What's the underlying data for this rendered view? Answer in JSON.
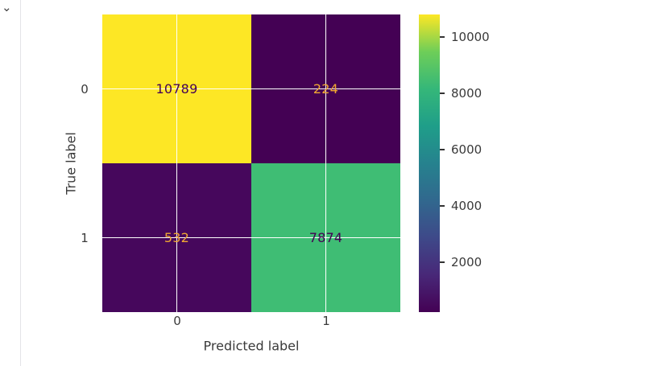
{
  "page": {
    "background": "#ffffff",
    "icons": {
      "chevron_down": "⌄"
    }
  },
  "chart_data": {
    "type": "heatmap",
    "subtype": "confusion_matrix",
    "title": "",
    "xlabel": "Predicted label",
    "ylabel": "True label",
    "x_ticklabels": [
      "0",
      "1"
    ],
    "y_ticklabels": [
      "0",
      "1"
    ],
    "matrix": [
      [
        10789,
        224
      ],
      [
        532,
        7874
      ]
    ],
    "vmin": 224,
    "vmax": 10789,
    "colormap": "viridis",
    "cell_colors": [
      [
        "#fde725",
        "#440154"
      ],
      [
        "#46075c",
        "#3fbd74"
      ]
    ],
    "cell_text_colors": [
      [
        "#440154",
        "#f0a832"
      ],
      [
        "#f0a832",
        "#440154"
      ]
    ],
    "colorbar_ticks": [
      10000,
      8000,
      6000,
      4000,
      2000
    ],
    "grid": true,
    "gridline_color": "#ffffff",
    "legend_position": "right-colorbar"
  }
}
